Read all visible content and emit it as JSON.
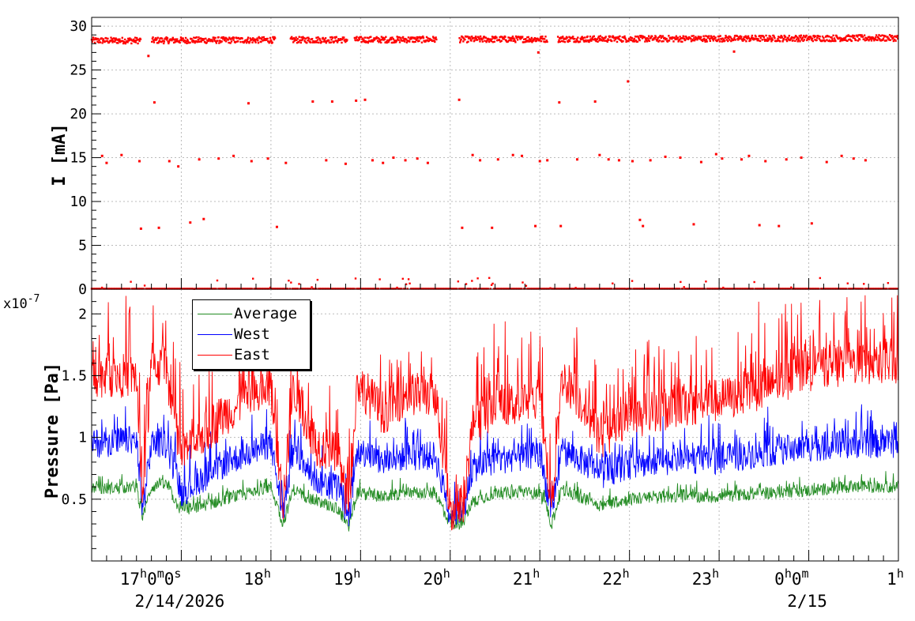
{
  "chart_data": [
    {
      "type": "scatter",
      "ylabel": "I [mA]",
      "ylim": [
        0,
        31
      ],
      "yticks": [
        "0",
        "5",
        "10",
        "15",
        "20",
        "25",
        "30"
      ],
      "grid": true,
      "x_range": [
        "2026-02-14 16:00",
        "2026-02-15 01:00"
      ],
      "series": [
        {
          "color": "#ff0000",
          "gaps": [
            [
              "16:33",
              "16:40"
            ],
            [
              "18:03",
              "18:13"
            ],
            [
              "18:51",
              "18:56"
            ],
            [
              "19:51",
              "20:06"
            ],
            [
              "21:05",
              "21:12"
            ]
          ],
          "levels": {
            "main": 28.5,
            "zero": 0.0
          },
          "outliers": [
            {
              "x": "16:07",
              "y": 15.2
            },
            {
              "x": "16:10",
              "y": 14.4
            },
            {
              "x": "16:20",
              "y": 15.3
            },
            {
              "x": "16:32",
              "y": 14.6
            },
            {
              "x": "16:33",
              "y": 6.9
            },
            {
              "x": "16:42",
              "y": 21.3
            },
            {
              "x": "16:45",
              "y": 7.0
            },
            {
              "x": "16:52",
              "y": 14.6
            },
            {
              "x": "16:58",
              "y": 14.0
            },
            {
              "x": "17:06",
              "y": 7.6
            },
            {
              "x": "17:12",
              "y": 14.8
            },
            {
              "x": "17:15",
              "y": 8.0
            },
            {
              "x": "17:25",
              "y": 14.9
            },
            {
              "x": "17:35",
              "y": 15.2
            },
            {
              "x": "17:45",
              "y": 21.2
            },
            {
              "x": "17:47",
              "y": 14.6
            },
            {
              "x": "17:58",
              "y": 14.9
            },
            {
              "x": "18:04",
              "y": 7.1
            },
            {
              "x": "18:10",
              "y": 14.4
            },
            {
              "x": "18:28",
              "y": 21.4
            },
            {
              "x": "18:37",
              "y": 14.7
            },
            {
              "x": "18:41",
              "y": 21.4
            },
            {
              "x": "18:50",
              "y": 14.3
            },
            {
              "x": "18:57",
              "y": 21.5
            },
            {
              "x": "19:03",
              "y": 21.6
            },
            {
              "x": "19:08",
              "y": 14.7
            },
            {
              "x": "19:15",
              "y": 14.4
            },
            {
              "x": "19:22",
              "y": 15.0
            },
            {
              "x": "19:30",
              "y": 14.7
            },
            {
              "x": "19:38",
              "y": 14.9
            },
            {
              "x": "19:45",
              "y": 14.4
            },
            {
              "x": "20:06",
              "y": 21.6
            },
            {
              "x": "20:08",
              "y": 7.0
            },
            {
              "x": "20:15",
              "y": 15.3
            },
            {
              "x": "20:20",
              "y": 14.7
            },
            {
              "x": "20:28",
              "y": 7.0
            },
            {
              "x": "20:32",
              "y": 14.8
            },
            {
              "x": "20:42",
              "y": 15.3
            },
            {
              "x": "20:48",
              "y": 15.2
            },
            {
              "x": "20:57",
              "y": 7.2
            },
            {
              "x": "21:00",
              "y": 14.6
            },
            {
              "x": "21:05",
              "y": 14.7
            },
            {
              "x": "21:13",
              "y": 21.3
            },
            {
              "x": "21:14",
              "y": 7.2
            },
            {
              "x": "21:25",
              "y": 14.8
            },
            {
              "x": "21:37",
              "y": 21.4
            },
            {
              "x": "21:40",
              "y": 15.3
            },
            {
              "x": "21:46",
              "y": 14.8
            },
            {
              "x": "21:53",
              "y": 14.7
            },
            {
              "x": "21:59",
              "y": 23.7
            },
            {
              "x": "22:02",
              "y": 14.6
            },
            {
              "x": "22:07",
              "y": 7.9
            },
            {
              "x": "22:09",
              "y": 7.2
            },
            {
              "x": "22:14",
              "y": 14.7
            },
            {
              "x": "22:24",
              "y": 15.1
            },
            {
              "x": "22:34",
              "y": 15.0
            },
            {
              "x": "22:43",
              "y": 7.4
            },
            {
              "x": "22:48",
              "y": 14.5
            },
            {
              "x": "22:58",
              "y": 15.4
            },
            {
              "x": "23:02",
              "y": 14.9
            },
            {
              "x": "23:10",
              "y": 27.1
            },
            {
              "x": "23:15",
              "y": 14.8
            },
            {
              "x": "23:20",
              "y": 15.2
            },
            {
              "x": "23:27",
              "y": 7.3
            },
            {
              "x": "23:31",
              "y": 14.6
            },
            {
              "x": "23:40",
              "y": 7.2
            },
            {
              "x": "23:45",
              "y": 14.8
            },
            {
              "x": "23:55",
              "y": 15.0
            },
            {
              "x": "00:02",
              "y": 7.5
            },
            {
              "x": "00:12",
              "y": 14.5
            },
            {
              "x": "00:22",
              "y": 15.2
            },
            {
              "x": "00:30",
              "y": 14.9
            },
            {
              "x": "00:38",
              "y": 14.7
            },
            {
              "x": "16:38",
              "y": 26.6
            },
            {
              "x": "20:59",
              "y": 27.0
            }
          ]
        }
      ]
    },
    {
      "type": "line",
      "ylabel": "Pressure [Pa]",
      "exponent_label": "x10",
      "exponent_power": "-7",
      "ylim": [
        0.0,
        2.2
      ],
      "yticks": [
        "0.5",
        "1",
        "1.5",
        "2"
      ],
      "grid": true,
      "legend_placement": "top-left",
      "x": [
        "16:00",
        "16:30",
        "16:34",
        "16:40",
        "16:50",
        "17:00",
        "17:30",
        "18:00",
        "18:08",
        "18:15",
        "18:30",
        "18:45",
        "18:52",
        "18:58",
        "19:15",
        "19:30",
        "19:50",
        "20:00",
        "20:08",
        "20:15",
        "20:30",
        "21:00",
        "21:08",
        "21:15",
        "21:30",
        "21:40",
        "22:00",
        "22:30",
        "23:00",
        "23:30",
        "00:00",
        "00:30",
        "01:00"
      ],
      "series": [
        {
          "name": "Average",
          "color": "#228b22",
          "values": [
            0.58,
            0.6,
            0.35,
            0.6,
            0.62,
            0.4,
            0.5,
            0.6,
            0.3,
            0.58,
            0.48,
            0.42,
            0.28,
            0.55,
            0.52,
            0.55,
            0.55,
            0.3,
            0.3,
            0.48,
            0.55,
            0.55,
            0.3,
            0.58,
            0.5,
            0.45,
            0.5,
            0.52,
            0.52,
            0.55,
            0.57,
            0.6,
            0.6
          ]
        },
        {
          "name": "West",
          "color": "#0000ff",
          "values": [
            0.95,
            0.98,
            0.4,
            0.95,
            0.95,
            0.55,
            0.8,
            0.95,
            0.38,
            0.9,
            0.65,
            0.6,
            0.35,
            0.9,
            0.8,
            0.85,
            0.85,
            0.38,
            0.38,
            0.75,
            0.82,
            0.85,
            0.4,
            0.9,
            0.8,
            0.7,
            0.78,
            0.82,
            0.82,
            0.88,
            0.92,
            0.95,
            0.95
          ]
        },
        {
          "name": "East",
          "color": "#ff0000",
          "values": [
            1.5,
            1.5,
            0.45,
            1.6,
            1.55,
            0.85,
            1.2,
            1.4,
            0.45,
            1.4,
            0.95,
            0.85,
            0.4,
            1.45,
            1.2,
            1.35,
            1.35,
            0.42,
            0.42,
            1.1,
            1.25,
            1.3,
            0.45,
            1.5,
            1.25,
            1.0,
            1.15,
            1.25,
            1.3,
            1.4,
            1.55,
            1.6,
            1.6
          ]
        }
      ],
      "xaxis_labels": [
        {
          "hour": "17",
          "sup1": "h",
          "min": "0",
          "sup2": "m",
          "sec": "0",
          "sup3": "s",
          "date": "2/14/2026"
        },
        {
          "hour": "18",
          "sup1": "h"
        },
        {
          "hour": "19",
          "sup1": "h"
        },
        {
          "hour": "20",
          "sup1": "h"
        },
        {
          "hour": "21",
          "sup1": "h"
        },
        {
          "hour": "22",
          "sup1": "h"
        },
        {
          "hour": "23",
          "sup1": "h"
        },
        {
          "hour": "0",
          "sup1": "h",
          "min": "0",
          "sup2": "m",
          "date": "2/15"
        },
        {
          "hour": "1",
          "sup1": "h"
        }
      ]
    }
  ]
}
